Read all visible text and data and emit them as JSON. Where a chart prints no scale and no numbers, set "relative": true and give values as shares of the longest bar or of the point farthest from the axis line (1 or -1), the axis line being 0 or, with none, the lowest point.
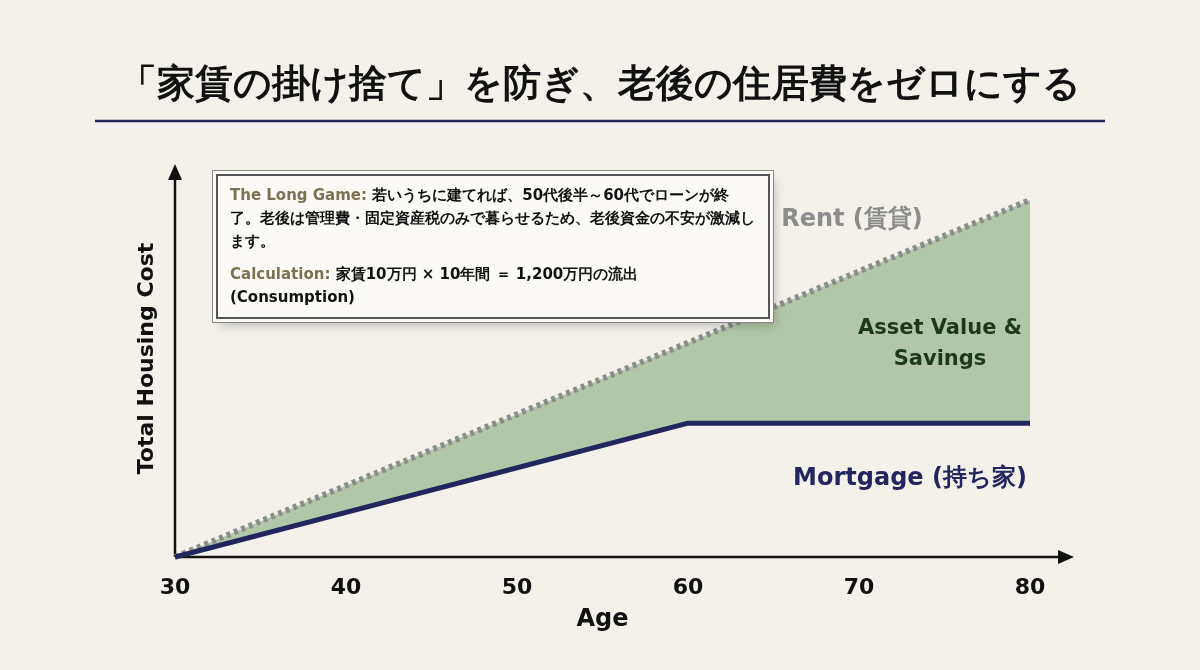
{
  "chart_data": {
    "type": "line",
    "title": "「家賃の掛け捨て」を防ぎ、老後の住居費をゼロにする",
    "xlabel": "Age",
    "ylabel": "Total Housing Cost",
    "relative": true,
    "xlim": [
      30,
      80
    ],
    "xticks": [
      30,
      40,
      50,
      60,
      70,
      80
    ],
    "grid": false,
    "legend": false,
    "marker": "none",
    "series": [
      {
        "name": "Rent (賃貸)",
        "color": "#8c8c8c",
        "line_style": "dotted",
        "x": [
          30,
          60,
          80
        ],
        "values": [
          0,
          0.6,
          1
        ],
        "lower": [
          0,
          0.375,
          0.375
        ],
        "upper": [
          0,
          0.6,
          1
        ]
      },
      {
        "name": "Mortgage (持ち家)",
        "color": "#23265e",
        "line_style": "solid",
        "x": [
          30,
          60,
          80
        ],
        "values": [
          0,
          0.375,
          0.375
        ]
      }
    ],
    "annotations": [
      "**The Long Game:** 若いうちに建てれば、50代後半～60代でローンが終了。老後は管理費・固定資産税のみで暮らせるため、老後資金の不安が激減します。",
      "**Calculation:** 家賃10万円 × 10年間 ＝ 1,200万円の流出 (Consumption)",
      "Asset Value & Savings"
    ]
  }
}
